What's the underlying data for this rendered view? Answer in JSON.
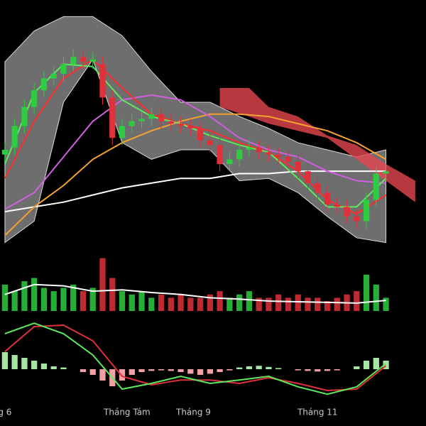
{
  "chart_data": {
    "type": "stock",
    "xlim": [
      -0.5,
      43.1
    ],
    "xticks": [
      {
        "value": 0,
        "label": "g 6"
      },
      {
        "value": 12.5,
        "label": "Tháng Tám"
      },
      {
        "value": 19.3,
        "label": "Tháng 9"
      },
      {
        "value": 32,
        "label": "Tháng 11"
      }
    ],
    "price": {
      "ylim": [
        0,
        100
      ],
      "up_color": "#2ecc40",
      "down_color": "#e0303a",
      "open": [
        38,
        41,
        50,
        58,
        65,
        70,
        72,
        76,
        79,
        77,
        76,
        62,
        45,
        50,
        52,
        53,
        55,
        52,
        51,
        50,
        49,
        44,
        42,
        34,
        36,
        40,
        41,
        39,
        38,
        37,
        35,
        31,
        26,
        22,
        17,
        16,
        12,
        10,
        19,
        30
      ],
      "close": [
        40,
        50,
        58,
        65,
        70,
        72,
        76,
        79,
        77,
        78,
        62,
        45,
        50,
        52,
        53,
        55,
        52,
        51,
        50,
        49,
        44,
        42,
        34,
        36,
        40,
        41,
        39,
        38,
        37,
        35,
        31,
        26,
        22,
        17,
        16,
        12,
        10,
        19,
        30,
        31
      ],
      "high": [
        43,
        53,
        61,
        68,
        73,
        75,
        79,
        82,
        82,
        81,
        79,
        65,
        53,
        55,
        56,
        58,
        58,
        55,
        54,
        53,
        52,
        47,
        45,
        39,
        43,
        44,
        44,
        42,
        41,
        40,
        38,
        34,
        29,
        25,
        20,
        19,
        15,
        22,
        33,
        34
      ],
      "low": [
        35,
        38,
        47,
        55,
        62,
        67,
        69,
        73,
        74,
        74,
        59,
        42,
        42,
        47,
        49,
        50,
        49,
        48,
        47,
        46,
        41,
        39,
        31,
        31,
        33,
        37,
        36,
        35,
        34,
        32,
        28,
        23,
        19,
        14,
        13,
        9,
        7,
        7,
        16,
        27
      ],
      "bands": [
        {
          "color": "rgba(200,200,200,0.55)",
          "x": [
            0,
            3,
            6,
            9,
            12,
            15,
            18,
            21,
            24,
            27,
            30,
            33,
            36,
            39
          ],
          "upper": [
            77,
            90,
            96,
            96,
            88,
            73,
            60,
            60,
            54,
            49,
            43,
            40,
            37,
            40
          ],
          "lower": [
            1,
            10,
            60,
            78,
            43,
            36,
            40,
            40,
            27,
            28,
            22,
            12,
            3,
            1
          ]
        },
        {
          "color": "rgba(230,70,80,0.8)",
          "x": [
            22,
            25,
            27,
            30,
            33,
            36,
            39,
            42
          ],
          "upper": [
            66,
            66,
            58,
            54,
            46,
            42,
            34,
            27
          ],
          "lower": [
            58,
            54,
            51,
            48,
            45,
            36,
            27,
            18
          ]
        }
      ],
      "lines": [
        {
          "color": "#ffffff",
          "x": [
            0,
            3,
            6,
            9,
            12,
            15,
            18,
            21,
            24,
            27,
            30,
            33,
            36,
            39
          ],
          "values": [
            14,
            16,
            18,
            21,
            24,
            26,
            28,
            28,
            30,
            30,
            31,
            31,
            31,
            31
          ]
        },
        {
          "color": "#f5a030",
          "x": [
            0,
            3,
            6,
            9,
            12,
            15,
            18,
            21,
            24,
            27,
            30,
            33,
            36,
            39
          ],
          "values": [
            4,
            16,
            25,
            36,
            43,
            48,
            52,
            55,
            55,
            54,
            51,
            48,
            43,
            36
          ]
        },
        {
          "color": "#d060e0",
          "x": [
            0,
            3,
            6,
            9,
            12,
            15,
            18,
            21,
            24,
            27,
            30,
            33,
            36,
            39
          ],
          "values": [
            15,
            22,
            37,
            52,
            61,
            63,
            61,
            54,
            45,
            40,
            37,
            31,
            27,
            26
          ]
        },
        {
          "color": "#ff2a2a",
          "x": [
            0,
            3,
            6,
            9,
            12,
            15,
            18,
            21,
            24,
            27,
            30,
            33,
            36,
            39
          ],
          "values": [
            28,
            52,
            70,
            78,
            66,
            55,
            51,
            48,
            43,
            39,
            31,
            19,
            13,
            21
          ]
        },
        {
          "color": "#5de85d",
          "x": [
            0,
            3,
            6,
            9,
            12,
            15,
            18,
            21,
            24,
            27,
            30,
            33,
            36,
            39
          ],
          "values": [
            34,
            64,
            76,
            75,
            61,
            54,
            51,
            46,
            42,
            39,
            28,
            16,
            16,
            28
          ]
        }
      ]
    },
    "volume": {
      "ylim": [
        0,
        100
      ],
      "values": [
        40,
        30,
        45,
        50,
        35,
        30,
        35,
        40,
        30,
        35,
        80,
        50,
        30,
        25,
        30,
        20,
        25,
        20,
        25,
        20,
        20,
        25,
        30,
        20,
        25,
        30,
        20,
        20,
        25,
        20,
        25,
        20,
        20,
        15,
        20,
        25,
        30,
        55,
        40,
        20
      ],
      "line": {
        "color": "#ffffff",
        "x": [
          0,
          3,
          6,
          9,
          12,
          15,
          18,
          21,
          24,
          27,
          30,
          33,
          36,
          39
        ],
        "values": [
          25,
          40,
          38,
          30,
          32,
          28,
          25,
          20,
          18,
          15,
          14,
          13,
          12,
          16
        ]
      }
    },
    "macd": {
      "ylim": [
        -6.25,
        10
      ],
      "histogram": [
        3,
        2.5,
        2,
        1.5,
        1,
        0.5,
        0.3,
        0,
        -0.5,
        -1,
        -2,
        -3,
        -2,
        -1,
        -0.5,
        -0.3,
        -0.2,
        -0.3,
        -0.5,
        -0.8,
        -1,
        -0.8,
        -0.5,
        -0.2,
        0.3,
        0.5,
        0.6,
        0.4,
        0.2,
        0,
        -0.2,
        -0.3,
        -0.4,
        -0.3,
        -0.2,
        0,
        0.5,
        1.5,
        2,
        1.5
      ],
      "lines": [
        {
          "color": "#e0303a",
          "x": [
            0,
            3,
            6,
            9,
            12,
            15,
            18,
            21,
            24,
            27,
            30,
            33,
            36,
            39
          ],
          "values": [
            3.1,
            7.5,
            7.75,
            5,
            -1.25,
            -2.75,
            -1.9,
            -1.9,
            -2.5,
            -1.5,
            -2.5,
            -3.75,
            -3.5,
            0.6
          ]
        },
        {
          "color": "#5de85d",
          "x": [
            0,
            3,
            6,
            9,
            12,
            15,
            18,
            21,
            24,
            27,
            30,
            33,
            36,
            39
          ],
          "values": [
            6.25,
            8.1,
            6.25,
            2.5,
            -3.5,
            -2.5,
            -1.25,
            -2.5,
            -1.9,
            -1.25,
            -3.1,
            -4.4,
            -3.1,
            1
          ]
        }
      ]
    }
  }
}
